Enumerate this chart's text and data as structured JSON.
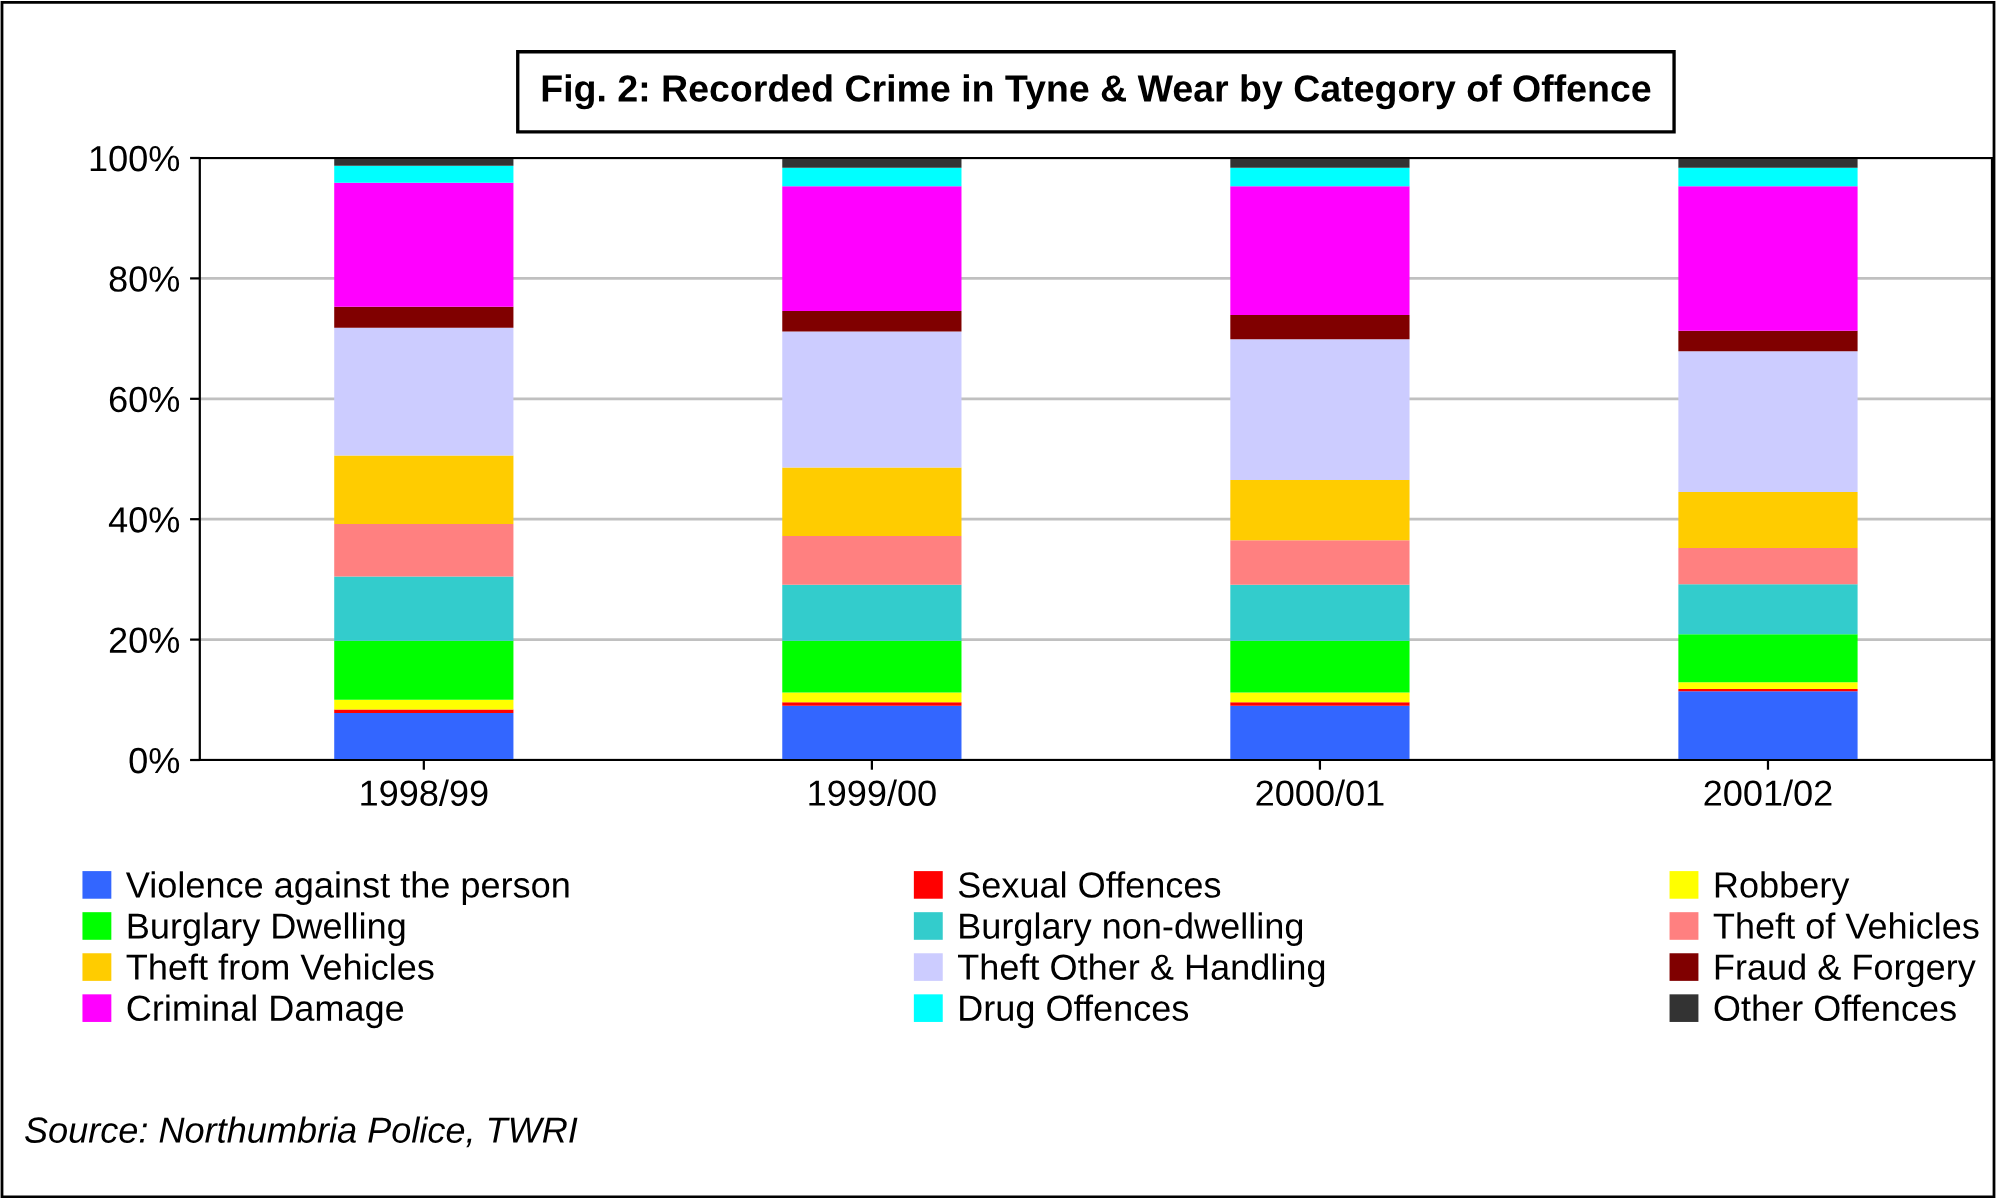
{
  "chart_data": {
    "type": "bar",
    "stacked": true,
    "title": "Fig. 2: Recorded Crime in Tyne & Wear by Category of Offence",
    "categories": [
      "1998/99",
      "1999/00",
      "2000/01",
      "2001/02"
    ],
    "series": [
      {
        "name": "Violence against the person",
        "color": "#3366ff",
        "values": [
          7.8,
          9.0,
          9.0,
          11.4
        ]
      },
      {
        "name": "Sexual Offences",
        "color": "#ff0000",
        "values": [
          0.6,
          0.6,
          0.6,
          0.4
        ]
      },
      {
        "name": "Robbery",
        "color": "#ffff00",
        "values": [
          1.6,
          1.6,
          1.6,
          1.1
        ]
      },
      {
        "name": "Burglary Dwelling",
        "color": "#00ff00",
        "values": [
          9.8,
          8.6,
          8.6,
          8.0
        ]
      },
      {
        "name": "Burglary non-dwelling",
        "color": "#33cccc",
        "values": [
          10.7,
          9.3,
          9.3,
          8.3
        ]
      },
      {
        "name": "Theft of Vehicles",
        "color": "#ff8080",
        "values": [
          8.7,
          8.1,
          7.4,
          6.0
        ]
      },
      {
        "name": "Theft from Vehicles",
        "color": "#ffcc00",
        "values": [
          11.4,
          11.4,
          10.0,
          9.3
        ]
      },
      {
        "name": "Theft Other & Handling",
        "color": "#ccccff",
        "values": [
          21.2,
          22.6,
          23.4,
          23.4
        ]
      },
      {
        "name": "Fraud & Forgery",
        "color": "#800000",
        "values": [
          3.5,
          3.4,
          4.0,
          3.4
        ]
      },
      {
        "name": "Criminal Damage",
        "color": "#ff00ff",
        "values": [
          20.6,
          20.7,
          21.4,
          24.0
        ]
      },
      {
        "name": "Drug Offences",
        "color": "#00ffff",
        "values": [
          2.8,
          3.1,
          3.1,
          3.1
        ]
      },
      {
        "name": "Other Offences",
        "color": "#333333",
        "values": [
          1.3,
          1.6,
          1.6,
          1.6
        ]
      }
    ],
    "ylim": [
      0,
      100
    ],
    "yticks": [
      {
        "value": 0,
        "label": "0%"
      },
      {
        "value": 20,
        "label": "20%"
      },
      {
        "value": 40,
        "label": "40%"
      },
      {
        "value": 60,
        "label": "60%"
      },
      {
        "value": 80,
        "label": "80%"
      },
      {
        "value": 100,
        "label": "100%"
      }
    ],
    "grid": "y",
    "legend": "bottom",
    "annotations": [
      "Source: Northumbria Police, TWRI"
    ]
  }
}
